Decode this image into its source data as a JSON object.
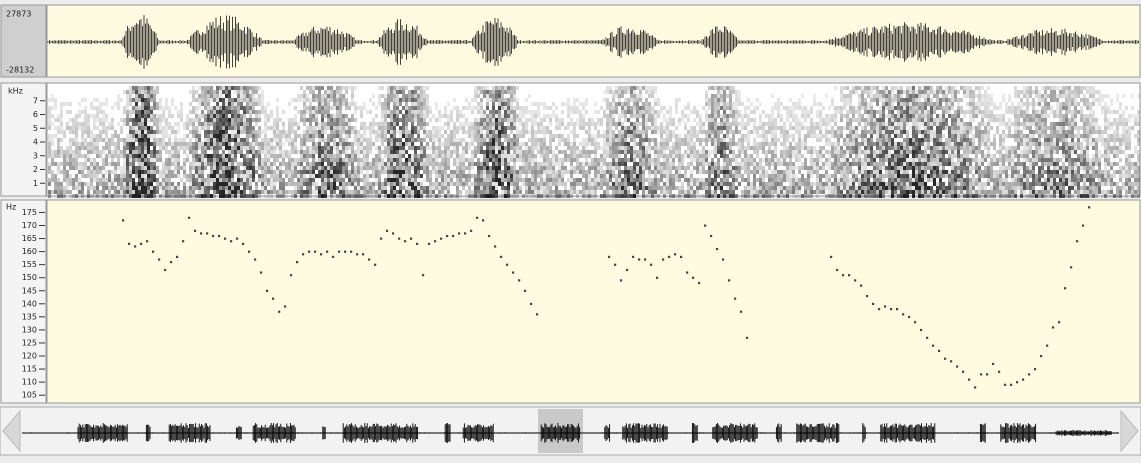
{
  "waveform": {
    "max_label": "27873",
    "min_label": "-28132"
  },
  "spectrogram": {
    "unit": "kHz",
    "ylim": [
      0,
      8
    ],
    "yticks": [
      1,
      2,
      3,
      4,
      5,
      6,
      7
    ]
  },
  "chart_data": {
    "type": "scatter",
    "y_unit": "Hz",
    "color": "#444444",
    "ylim": [
      102,
      179
    ],
    "yticks": [
      105,
      110,
      115,
      120,
      125,
      130,
      135,
      140,
      145,
      150,
      155,
      160,
      165,
      170,
      175
    ],
    "values": [
      172,
      163,
      162,
      163,
      164,
      160,
      157,
      153,
      156,
      158,
      164,
      173,
      168,
      167,
      167,
      166,
      166,
      165,
      164,
      165,
      163,
      160,
      157,
      152,
      145,
      142,
      137,
      139,
      151,
      156,
      159,
      160,
      160,
      159,
      160,
      158,
      160,
      160,
      160,
      159,
      159,
      157,
      155,
      165,
      168,
      167,
      165,
      164,
      165,
      163,
      151,
      163,
      164,
      165,
      166,
      166,
      167,
      167,
      168,
      173,
      172,
      166,
      162,
      158,
      155,
      152,
      149,
      145,
      140,
      136,
      null,
      null,
      null,
      null,
      null,
      null,
      null,
      null,
      null,
      null,
      null,
      158,
      155,
      149,
      153,
      158,
      157,
      157,
      155,
      150,
      157,
      158,
      159,
      158,
      152,
      150,
      148,
      170,
      166,
      161,
      157,
      149,
      142,
      137,
      127,
      null,
      null,
      null,
      null,
      null,
      null,
      null,
      null,
      null,
      null,
      null,
      null,
      null,
      158,
      153,
      151,
      151,
      149,
      147,
      143,
      140,
      138,
      139,
      138,
      138,
      136,
      135,
      133,
      130,
      127,
      124,
      122,
      119,
      118,
      116,
      114,
      111,
      108,
      113,
      113,
      117,
      114,
      109,
      109,
      110,
      111,
      113,
      115,
      120,
      124,
      131,
      133,
      146,
      154,
      164,
      170,
      177
    ]
  }
}
